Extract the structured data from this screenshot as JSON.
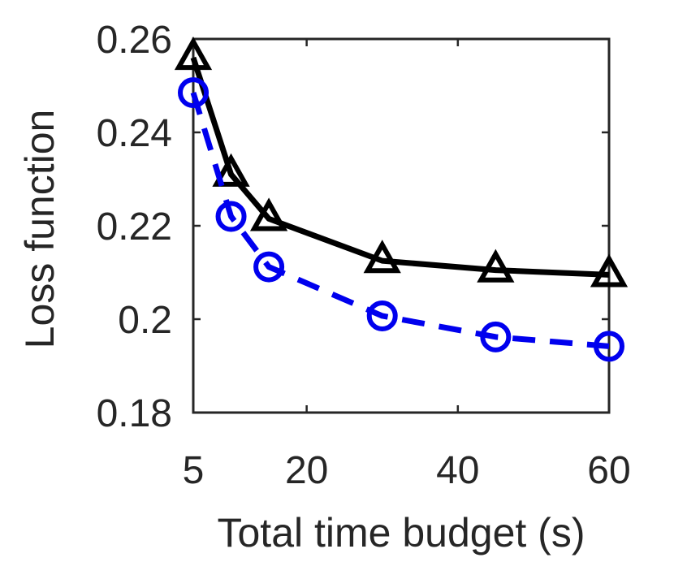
{
  "chart_data": {
    "type": "line",
    "title": "",
    "xlabel": "Total time budget (s)",
    "ylabel": "Loss function",
    "xlim": [
      5,
      60
    ],
    "ylim": [
      0.18,
      0.26
    ],
    "xticks": [
      5,
      20,
      40,
      60
    ],
    "yticks": [
      0.18,
      0.2,
      0.22,
      0.24,
      0.26
    ],
    "xtick_labels": [
      "5",
      "20",
      "40",
      "60"
    ],
    "ytick_labels": [
      "0.18",
      "0.2",
      "0.22",
      "0.24",
      "0.26"
    ],
    "grid": false,
    "legend": "none",
    "x": [
      5,
      10,
      15,
      30,
      45,
      60
    ],
    "series": [
      {
        "values": [
          0.256,
          0.231,
          0.2215,
          0.2125,
          0.2105,
          0.2095
        ],
        "color": "#000000",
        "line_style": "solid",
        "marker": "triangle"
      },
      {
        "values": [
          0.2485,
          0.222,
          0.2112,
          0.2007,
          0.1962,
          0.1942
        ],
        "color": "#0000ee",
        "line_style": "dashed",
        "marker": "circle"
      }
    ]
  }
}
